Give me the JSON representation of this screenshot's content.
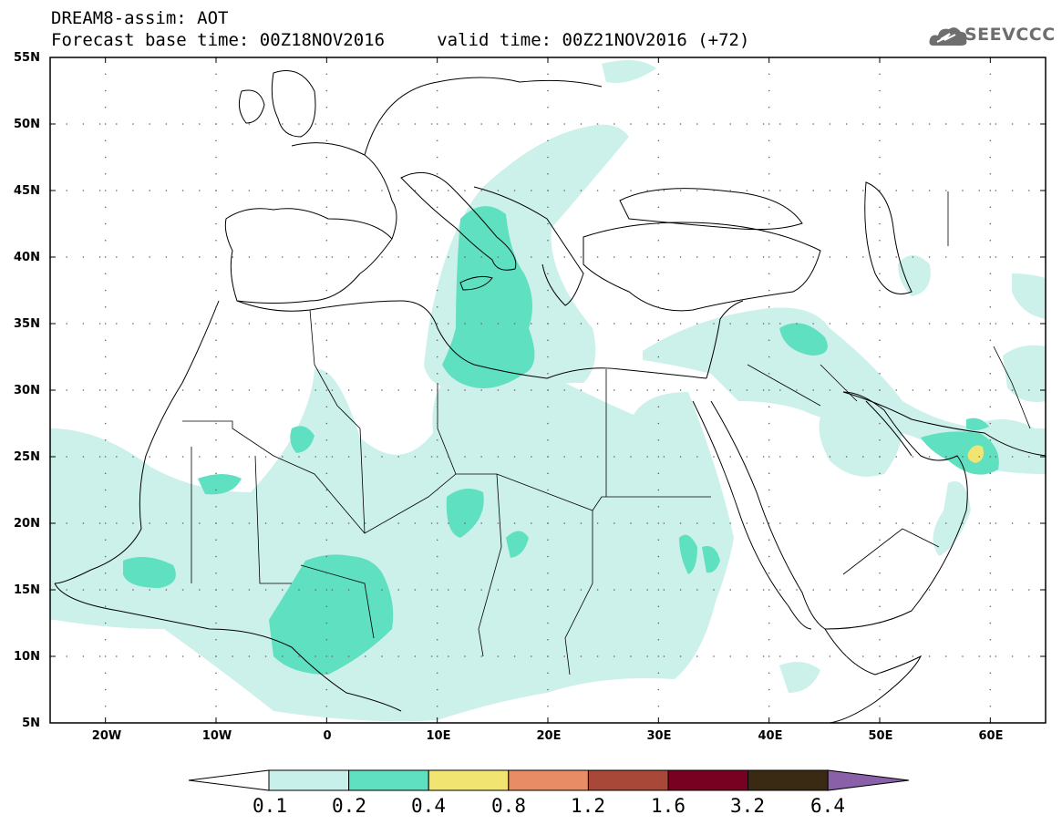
{
  "title": {
    "line1": "DREAM8-assim: AOT",
    "line2": "Forecast base time: 00Z18NOV2016     valid time: 00Z21NOV2016 (+72)"
  },
  "logo": {
    "text": "SEEVCCC",
    "icon": "cloud-icon"
  },
  "map": {
    "lon_range": [
      -25,
      65
    ],
    "lat_range": [
      5,
      55
    ],
    "lat_labels": [
      "55N",
      "50N",
      "45N",
      "40N",
      "35N",
      "30N",
      "25N",
      "20N",
      "15N",
      "10N",
      "5N"
    ],
    "lon_labels": [
      "20W",
      "10W",
      "0",
      "10E",
      "20E",
      "30E",
      "40E",
      "50E",
      "60E"
    ],
    "colors": {
      "c1": "#ccf0ea",
      "c2": "#5fe0c0",
      "c3": "#f2e470",
      "c4": "#e88c66"
    }
  },
  "colorbar": {
    "labels": [
      "0.1",
      "0.2",
      "0.4",
      "0.8",
      "1.2",
      "1.6",
      "3.2",
      "6.4"
    ],
    "colors": [
      "#c8f0ea",
      "#5fe0c0",
      "#f2e470",
      "#e88c66",
      "#a84838",
      "#780020",
      "#3a2a14"
    ],
    "left_arrow": "#ffffff",
    "right_arrow": "#8a60a8"
  }
}
